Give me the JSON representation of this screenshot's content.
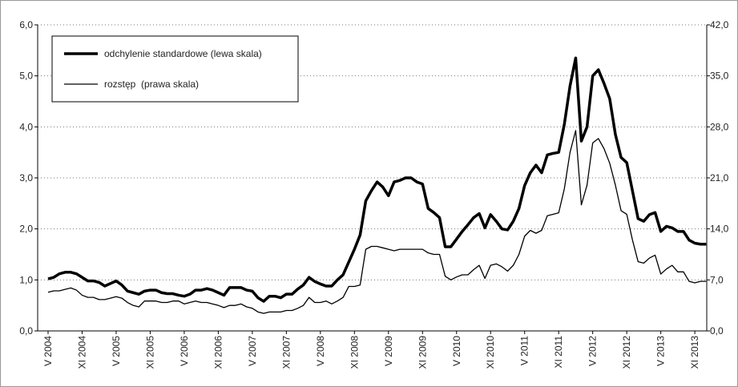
{
  "chart_data": {
    "type": "line",
    "categories": [
      "V 2004",
      null,
      null,
      null,
      null,
      null,
      "XI 2004",
      null,
      null,
      null,
      null,
      null,
      "V 2005",
      null,
      null,
      null,
      null,
      null,
      "XI 2005",
      null,
      null,
      null,
      null,
      null,
      "V 2006",
      null,
      null,
      null,
      null,
      null,
      "XI 2006",
      null,
      null,
      null,
      null,
      null,
      "V 2007",
      null,
      null,
      null,
      null,
      null,
      "XI 2007",
      null,
      null,
      null,
      null,
      null,
      "V 2008",
      null,
      null,
      null,
      null,
      null,
      "XI 2008",
      null,
      null,
      null,
      null,
      null,
      "V 2009",
      null,
      null,
      null,
      null,
      null,
      "XI 2009",
      null,
      null,
      null,
      null,
      null,
      "V 2010",
      null,
      null,
      null,
      null,
      null,
      "XI 2010",
      null,
      null,
      null,
      null,
      null,
      "V 2011",
      null,
      null,
      null,
      null,
      null,
      "XI 2011",
      null,
      null,
      null,
      null,
      null,
      "V 2012",
      null,
      null,
      null,
      null,
      null,
      "XI 2012",
      null,
      null,
      null,
      null,
      null,
      "V 2013",
      null,
      null,
      null,
      null,
      null,
      "XI 2013",
      null,
      null
    ],
    "series": [
      {
        "name": "odchylenie standardowe (lewa skala)",
        "color": "#000000",
        "width": "thick",
        "values": [
          1.02,
          1.05,
          1.12,
          1.15,
          1.15,
          1.12,
          1.05,
          0.98,
          0.98,
          0.95,
          0.88,
          0.93,
          0.98,
          0.9,
          0.78,
          0.75,
          0.72,
          0.78,
          0.8,
          0.8,
          0.75,
          0.73,
          0.73,
          0.7,
          0.68,
          0.72,
          0.8,
          0.8,
          0.83,
          0.8,
          0.75,
          0.7,
          0.85,
          0.85,
          0.85,
          0.8,
          0.78,
          0.65,
          0.58,
          0.68,
          0.68,
          0.65,
          0.72,
          0.72,
          0.82,
          0.9,
          1.05,
          0.97,
          0.92,
          0.88,
          0.88,
          1.0,
          1.1,
          1.35,
          1.6,
          1.88,
          2.55,
          2.75,
          2.92,
          2.82,
          2.65,
          2.92,
          2.95,
          3.0,
          3.0,
          2.92,
          2.88,
          2.4,
          2.32,
          2.22,
          1.65,
          1.65,
          1.8,
          1.95,
          2.08,
          2.22,
          2.3,
          2.02,
          2.28,
          2.15,
          2.0,
          1.98,
          2.15,
          2.4,
          2.85,
          3.1,
          3.25,
          3.1,
          3.45,
          3.48,
          3.5,
          4.05,
          4.8,
          5.35,
          3.72,
          4.0,
          5.0,
          5.12,
          4.85,
          4.55,
          3.85,
          3.4,
          3.3,
          2.75,
          2.2,
          2.15,
          2.28,
          2.32,
          1.95,
          2.05,
          2.02,
          1.95,
          1.95,
          1.78,
          1.72,
          1.7,
          1.7
        ]
      },
      {
        "name": "rozstęp  (prawa skala)",
        "color": "#000000",
        "width": "thin",
        "axis": "y2",
        "values": [
          5.3,
          5.5,
          5.5,
          5.7,
          5.9,
          5.6,
          4.9,
          4.6,
          4.6,
          4.3,
          4.3,
          4.5,
          4.7,
          4.5,
          3.9,
          3.5,
          3.3,
          4.1,
          4.1,
          4.1,
          3.9,
          3.9,
          4.1,
          4.1,
          3.7,
          3.9,
          4.1,
          3.9,
          3.9,
          3.7,
          3.5,
          3.2,
          3.5,
          3.5,
          3.7,
          3.3,
          3.1,
          2.6,
          2.4,
          2.6,
          2.6,
          2.6,
          2.8,
          2.8,
          3.1,
          3.5,
          4.6,
          3.9,
          3.9,
          4.1,
          3.7,
          4.1,
          4.6,
          6.1,
          6.1,
          6.3,
          11.2,
          11.6,
          11.6,
          11.4,
          11.2,
          11.0,
          11.2,
          11.2,
          11.2,
          11.2,
          11.2,
          10.7,
          10.5,
          10.5,
          7.5,
          7.0,
          7.4,
          7.7,
          7.7,
          8.4,
          9.0,
          7.2,
          9.0,
          9.2,
          8.8,
          8.2,
          9.0,
          10.5,
          13.0,
          13.8,
          13.4,
          13.8,
          15.8,
          16.0,
          16.2,
          19.5,
          24.5,
          27.5,
          17.3,
          20.0,
          25.8,
          26.4,
          25.0,
          23.0,
          20.0,
          16.5,
          16.0,
          12.5,
          9.5,
          9.3,
          10.0,
          10.4,
          7.8,
          8.5,
          9.0,
          8.1,
          8.1,
          6.8,
          6.6,
          6.8,
          6.8
        ]
      }
    ],
    "ylim": [
      0,
      6
    ],
    "yticks": [
      {
        "value": 0,
        "label": "0,0"
      },
      {
        "value": 1,
        "label": "1,0"
      },
      {
        "value": 2,
        "label": "2,0"
      },
      {
        "value": 3,
        "label": "3,0"
      },
      {
        "value": 4,
        "label": "4,0"
      },
      {
        "value": 5,
        "label": "5,0"
      },
      {
        "value": 6,
        "label": "6,0"
      }
    ],
    "y2lim": [
      0,
      42
    ],
    "y2ticks": [
      {
        "value": 0,
        "label": "0,0"
      },
      {
        "value": 7,
        "label": "7,0"
      },
      {
        "value": 14,
        "label": "14,0"
      },
      {
        "value": 21,
        "label": "21,0"
      },
      {
        "value": 28,
        "label": "28,0"
      },
      {
        "value": 35,
        "label": "35,0"
      },
      {
        "value": 42,
        "label": "42,0"
      }
    ],
    "grid": true,
    "legend": "top-left"
  }
}
